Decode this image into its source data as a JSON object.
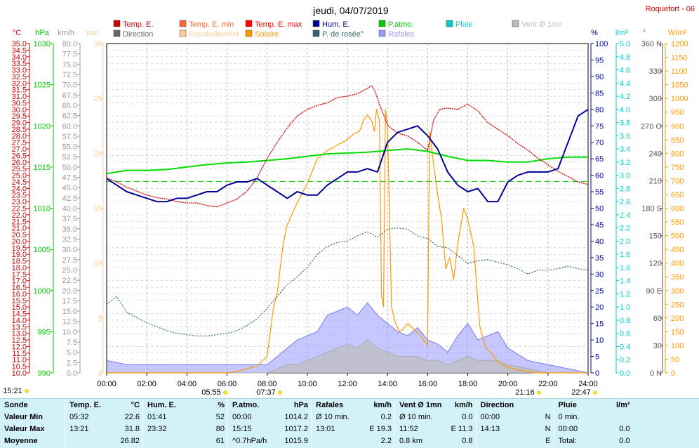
{
  "title": "jeudi, 04/07/2019",
  "station": "Roquefort - 06",
  "legend": [
    {
      "label": "Temp. E.",
      "color": "#cc0000"
    },
    {
      "label": "Temp. E. min",
      "color": "#ff6633"
    },
    {
      "label": "Temp. E. max",
      "color": "#ff0000"
    },
    {
      "label": "Hum. E.",
      "color": "#000099"
    },
    {
      "label": "P.atmo.",
      "color": "#00cc00"
    },
    {
      "label": "Pluie",
      "color": "#00cccc"
    },
    {
      "label": "Vent Ø 1mn",
      "color": "#bbbbbb"
    },
    {
      "label": "Direction",
      "color": "#666666"
    },
    {
      "label": "Ensoleillement",
      "color": "#ffcc99"
    },
    {
      "label": "Solaire",
      "color": "#ff9900"
    },
    {
      "label": "P. de rosée°",
      "color": "#336666"
    },
    {
      "label": "Rafales",
      "color": "#9999ff"
    }
  ],
  "axes": {
    "temp": {
      "unit": "°C",
      "min": 10,
      "max": 35,
      "step": 0.5,
      "color": "#cc0000"
    },
    "pressure": {
      "unit": "hPa",
      "min": 990,
      "max": 1030,
      "step": 5,
      "color": "#00cc00"
    },
    "wind": {
      "unit": "km/h",
      "min": 0,
      "max": 80,
      "step": 2.5,
      "color": "#999999"
    },
    "min": {
      "unit": "min",
      "min": 0,
      "max": 30,
      "step": 5,
      "color": "#ffcc99"
    },
    "hum": {
      "unit": "%",
      "min": 0,
      "max": 100,
      "step": 5,
      "color": "#000099"
    },
    "rain": {
      "unit": "l/m²",
      "min": 0,
      "max": 5,
      "step": 0.2,
      "color": "#00cccc"
    },
    "dir": {
      "unit": "°",
      "ticks": [
        "0 N",
        "30",
        "60",
        "90 E",
        "120",
        "150",
        "180 S",
        "210",
        "240",
        "270 O",
        "300",
        "330",
        "360 N"
      ],
      "color": "#666666"
    },
    "solar": {
      "unit": "W/m²",
      "min": 0,
      "max": 1200,
      "step": 50,
      "color": "#ff9900"
    }
  },
  "time_ticks": [
    "00:00",
    "02:00",
    "04:00",
    "06:00",
    "08:00",
    "10:00",
    "12:00",
    "14:00",
    "16:00",
    "18:00",
    "20:00",
    "22:00",
    "24:00"
  ],
  "sun_marks": [
    "15:21",
    "05:55",
    "07:37",
    "21:16",
    "22:47"
  ],
  "chart_data": {
    "type": "line",
    "x_unit": "hours",
    "xlim": [
      0,
      24
    ],
    "series": [
      {
        "name": "Temp. E.",
        "axis": "temp",
        "x": [
          0,
          0.5,
          1,
          1.5,
          2,
          2.5,
          3,
          3.5,
          4,
          4.5,
          5,
          5.5,
          6,
          6.5,
          7,
          7.5,
          8,
          8.5,
          9,
          9.5,
          10,
          10.5,
          11,
          11.5,
          12,
          12.5,
          13,
          13.2,
          13.35,
          13.6,
          14,
          14.5,
          15,
          15.5,
          16,
          16.3,
          16.6,
          17,
          17.5,
          18,
          18.5,
          19,
          19.5,
          20,
          20.5,
          21,
          21.5,
          22,
          22.5,
          23,
          23.5,
          24
        ],
        "y": [
          24.8,
          24.5,
          24.1,
          23.8,
          23.5,
          23.3,
          23.2,
          23.0,
          22.9,
          22.9,
          22.7,
          22.6,
          22.9,
          23.2,
          23.8,
          24.8,
          26.3,
          27.5,
          28.6,
          29.5,
          30.0,
          30.3,
          30.5,
          30.9,
          31.0,
          31.2,
          31.6,
          31.8,
          31.5,
          30.4,
          28.8,
          28.2,
          28.0,
          27.5,
          26.9,
          29.2,
          30.0,
          30.1,
          30.0,
          30.4,
          29.9,
          29.0,
          28.5,
          28.0,
          27.4,
          26.9,
          26.3,
          25.8,
          25.3,
          24.9,
          24.5,
          24.3
        ]
      },
      {
        "name": "Hum. E.",
        "axis": "hum",
        "x": [
          0,
          0.5,
          1,
          1.5,
          2,
          2.5,
          3,
          3.5,
          4,
          4.5,
          5,
          5.5,
          6,
          6.5,
          7,
          7.5,
          8,
          8.5,
          9,
          9.5,
          10,
          10.5,
          11,
          11.5,
          12,
          12.5,
          13,
          13.5,
          14,
          14.5,
          15,
          15.5,
          16,
          16.5,
          17,
          17.5,
          18,
          18.5,
          19,
          19.5,
          20,
          20.5,
          21,
          21.5,
          22,
          22.5,
          23,
          23.5,
          24
        ],
        "y": [
          59,
          57,
          55,
          54,
          53,
          52,
          52,
          53,
          53,
          54,
          55,
          55,
          57,
          58,
          58,
          59,
          57,
          55,
          53,
          55,
          54,
          54,
          57,
          59,
          61,
          61,
          62,
          61,
          70,
          73,
          74,
          75,
          72,
          68,
          61,
          57,
          55,
          56,
          52,
          52,
          58,
          60,
          61,
          61,
          61,
          62,
          70,
          78,
          80
        ]
      },
      {
        "name": "P.atmo.",
        "axis": "pressure",
        "x": [
          0,
          1,
          2,
          3,
          4,
          5,
          6,
          7,
          8,
          9,
          10,
          11,
          12,
          13,
          14,
          15,
          16,
          17,
          18,
          19,
          20,
          21,
          22,
          23,
          24
        ],
        "y": [
          1014.2,
          1014.6,
          1014.6,
          1014.7,
          1015.0,
          1015.3,
          1015.5,
          1015.6,
          1015.8,
          1016.0,
          1016.3,
          1016.6,
          1016.7,
          1016.8,
          1017.0,
          1017.2,
          1016.9,
          1016.3,
          1015.8,
          1015.8,
          1015.6,
          1015.6,
          1016.0,
          1016.2,
          1016.2
        ]
      },
      {
        "name": "P. de rosée°",
        "axis": "temp",
        "x": [
          0,
          0.5,
          1,
          1.5,
          2,
          2.5,
          3,
          3.5,
          4,
          4.5,
          5,
          5.5,
          6,
          6.5,
          7,
          7.5,
          8,
          8.5,
          9,
          9.5,
          10,
          10.5,
          11,
          11.5,
          12,
          12.5,
          13,
          13.5,
          14,
          14.5,
          15,
          15.5,
          16,
          16.5,
          17,
          17.5,
          18,
          18.5,
          19,
          19.5,
          20,
          20.5,
          21,
          21.5,
          22,
          22.5,
          23,
          23.5,
          24
        ],
        "y": [
          15.2,
          15.8,
          14.6,
          14.2,
          13.8,
          13.5,
          13.2,
          13.0,
          12.9,
          12.8,
          12.8,
          12.9,
          13.0,
          13.2,
          13.6,
          14.1,
          14.9,
          15.8,
          16.7,
          17.3,
          18.0,
          19.0,
          19.6,
          19.9,
          20.0,
          20.4,
          20.7,
          20.3,
          20.9,
          21.0,
          20.9,
          20.4,
          20.2,
          19.6,
          19.5,
          18.9,
          18.3,
          18.5,
          18.6,
          18.4,
          18.2,
          17.9,
          17.5,
          17.8,
          17.8,
          17.9,
          18.1,
          17.9,
          17.8
        ]
      },
      {
        "name": "Solaire",
        "axis": "solar",
        "x": [
          0,
          6,
          6.5,
          7,
          7.5,
          8.0,
          8.3,
          8.5,
          8.8,
          9,
          9.5,
          10,
          10.5,
          11,
          11.5,
          12,
          12.3,
          12.6,
          12.8,
          13.0,
          13.2,
          13.35,
          13.45,
          13.6,
          13.7,
          13.8,
          13.9,
          14.0,
          14.2,
          14.4,
          14.6,
          14.8,
          15.0,
          15.3,
          15.6,
          15.8,
          16.0,
          16.1,
          16.3,
          16.5,
          16.7,
          16.9,
          17.1,
          17.3,
          17.5,
          17.8,
          18.0,
          18.3,
          18.6,
          18.9,
          19.2,
          19.5,
          20,
          20.5,
          21,
          21.3,
          24
        ],
        "y": [
          0,
          0,
          5,
          15,
          25,
          60,
          230,
          290,
          470,
          540,
          620,
          690,
          780,
          810,
          830,
          850,
          870,
          880,
          920,
          940,
          920,
          880,
          960,
          920,
          280,
          240,
          960,
          900,
          240,
          180,
          150,
          160,
          180,
          160,
          140,
          120,
          100,
          880,
          760,
          650,
          560,
          380,
          420,
          340,
          470,
          600,
          560,
          460,
          170,
          90,
          70,
          40,
          20,
          10,
          5,
          0,
          0
        ]
      },
      {
        "name": "Rafales",
        "axis": "wind",
        "x": [
          0,
          1,
          2,
          3,
          4,
          5,
          6,
          7,
          8,
          8.5,
          9,
          9.5,
          10,
          10.5,
          11,
          11.5,
          12,
          12.5,
          13,
          13.5,
          14,
          14.5,
          15,
          15.5,
          16,
          16.5,
          17,
          17.5,
          18,
          18.5,
          19,
          19.5,
          20,
          21,
          22,
          23,
          24
        ],
        "y": [
          3,
          2,
          2,
          2,
          2,
          2,
          2,
          2,
          2,
          4,
          6,
          8,
          9,
          10,
          14,
          15,
          16,
          14,
          17,
          14,
          12,
          10,
          9,
          11,
          8,
          7,
          5,
          9,
          12,
          8,
          9,
          10,
          6,
          3,
          2,
          1,
          0
        ]
      },
      {
        "name": "Vent Ø 1mn",
        "axis": "wind",
        "x": [
          0,
          2,
          4,
          6,
          8,
          8.5,
          9,
          9.5,
          10,
          10.5,
          11,
          11.5,
          12,
          12.5,
          13,
          13.5,
          14,
          14.5,
          15,
          15.5,
          16,
          16.5,
          17,
          17.5,
          18,
          18.5,
          19,
          19.5,
          20,
          21,
          22,
          24
        ],
        "y": [
          0,
          0,
          0,
          0,
          0,
          1,
          2,
          2,
          3,
          4,
          5,
          6,
          7,
          6,
          8,
          6,
          5,
          4,
          4,
          4,
          3,
          3,
          2,
          3,
          4,
          3,
          3,
          3,
          2,
          1,
          0,
          0
        ]
      }
    ]
  },
  "summary": {
    "headers": {
      "c1": "Sonde",
      "c2": "Temp. E.",
      "c2u": "°C",
      "c3": "Hum. E.",
      "c3u": "%",
      "c4": "P.atmo.",
      "c4u": "hPa",
      "c5": "Rafales",
      "c5u": "km/h",
      "c6": "Vent Ø 1mn",
      "c6u": "km/h",
      "c7": "Direction",
      "c8": "Pluie",
      "c8u": "l/m²"
    },
    "rows": [
      {
        "label": "Valeur Min",
        "t_time": "05:32",
        "t_val": "22.6",
        "h_time": "01:41",
        "h_val": "52",
        "p_time": "00:00",
        "p_val": "1014.2",
        "r_time": "Ø 10 min.",
        "r_val": "0.2",
        "v_time": "Ø 10 min.",
        "v_val": "0.0",
        "d_time": "00:00",
        "d_val": "N",
        "pl_time": "0 min.",
        "pl_val": ""
      },
      {
        "label": "Valeur Max",
        "t_time": "13:21",
        "t_val": "31.8",
        "h_time": "23:32",
        "h_val": "80",
        "p_time": "15:15",
        "p_val": "1017.2",
        "r_time": "13:01",
        "r_val": "E 19.3",
        "v_time": "11:52",
        "v_val": "E 11.3",
        "d_time": "14:13",
        "d_val": "N",
        "pl_time": "00:00",
        "pl_val": "0.0"
      },
      {
        "label": "Moyenne",
        "t_time": "",
        "t_val": "26.82",
        "h_time": "",
        "h_val": "61",
        "p_time": "^0.7hPa/h",
        "p_val": "1015.9",
        "r_time": "",
        "r_val": "2.2",
        "v_time": "0.8 km",
        "v_val": "0.8",
        "d_time": "",
        "d_val": "E",
        "pl_time": "Total:",
        "pl_val": "0.0"
      }
    ]
  }
}
